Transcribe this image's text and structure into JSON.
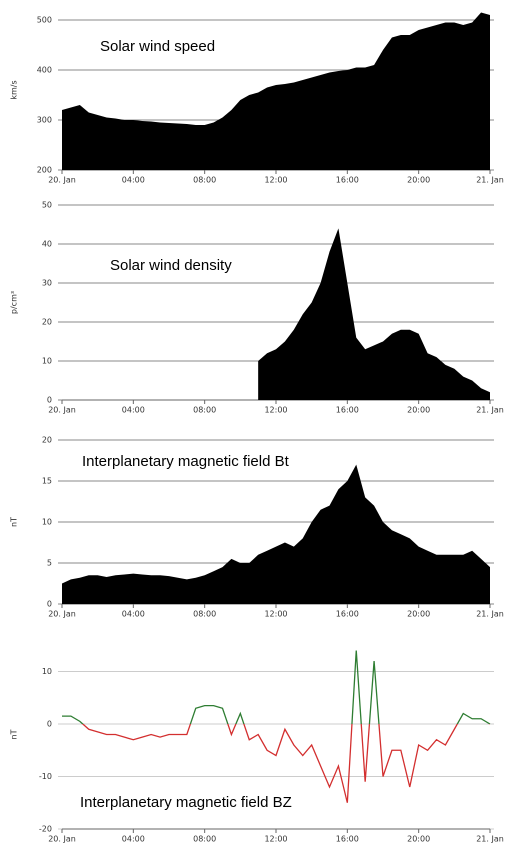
{
  "chart_data": [
    {
      "type": "area",
      "title": "Solar wind speed",
      "y_label": "km/s",
      "color": "#000000",
      "grid_color": "#888888",
      "x": [
        0,
        0.5,
        1,
        1.5,
        2,
        2.5,
        3,
        3.5,
        4,
        4.5,
        5,
        5.5,
        6,
        6.5,
        7,
        7.5,
        8,
        8.5,
        9,
        9.5,
        10,
        10.5,
        11,
        11.5,
        12,
        12.5,
        13,
        13.5,
        14,
        14.5,
        15,
        15.5,
        16,
        16.5,
        17,
        17.5,
        18,
        18.5,
        19,
        19.5,
        20,
        20.5,
        21,
        21.5,
        22,
        22.5,
        23,
        23.5,
        24
      ],
      "values": [
        320,
        325,
        330,
        315,
        310,
        305,
        303,
        300,
        300,
        298,
        297,
        295,
        294,
        293,
        292,
        290,
        290,
        295,
        305,
        320,
        340,
        350,
        355,
        365,
        370,
        372,
        375,
        380,
        385,
        390,
        395,
        398,
        400,
        405,
        405,
        410,
        440,
        465,
        470,
        470,
        480,
        485,
        490,
        495,
        495,
        490,
        495,
        515,
        510
      ],
      "xlim": [
        0,
        24
      ],
      "xticks": [
        {
          "value": 0,
          "label": "20. Jan"
        },
        {
          "value": 4,
          "label": "04:00"
        },
        {
          "value": 8,
          "label": "08:00"
        },
        {
          "value": 12,
          "label": "12:00"
        },
        {
          "value": 16,
          "label": "16:00"
        },
        {
          "value": 20,
          "label": "20:00"
        },
        {
          "value": 24,
          "label": "21. Jan"
        }
      ],
      "ylim": [
        200,
        520
      ],
      "yticks": [
        200,
        300,
        400,
        500
      ],
      "grid": true
    },
    {
      "type": "area",
      "title": "Solar wind density",
      "y_label": "p/cm³",
      "color": "#000000",
      "grid_color": "#888888",
      "x": [
        0,
        0.5,
        1,
        1.5,
        2,
        2.5,
        3,
        3.5,
        4,
        4.5,
        5,
        5.5,
        6,
        6.5,
        7,
        7.5,
        8,
        8.5,
        9,
        9.5,
        10,
        10.5,
        11,
        11.5,
        12,
        12.5,
        13,
        13.5,
        14,
        14.5,
        15,
        15.5,
        16,
        16.5,
        17,
        17.5,
        18,
        18.5,
        19,
        19.5,
        20,
        20.5,
        21,
        21.5,
        22,
        22.5,
        23,
        23.5,
        24
      ],
      "values": [
        null,
        null,
        null,
        null,
        null,
        null,
        null,
        null,
        null,
        null,
        null,
        null,
        null,
        null,
        null,
        null,
        null,
        null,
        null,
        null,
        null,
        null,
        10,
        12,
        13,
        15,
        18,
        22,
        25,
        30,
        38,
        44,
        30,
        16,
        13,
        14,
        15,
        17,
        18,
        18,
        17,
        12,
        11,
        9,
        8,
        6,
        5,
        3,
        2
      ],
      "xlim": [
        0,
        24
      ],
      "xticks": [
        {
          "value": 0,
          "label": "20. Jan"
        },
        {
          "value": 4,
          "label": "04:00"
        },
        {
          "value": 8,
          "label": "08:00"
        },
        {
          "value": 12,
          "label": "12:00"
        },
        {
          "value": 16,
          "label": "16:00"
        },
        {
          "value": 20,
          "label": "20:00"
        },
        {
          "value": 24,
          "label": "21. Jan"
        }
      ],
      "ylim": [
        0,
        50
      ],
      "yticks": [
        0,
        10,
        20,
        30,
        40,
        50
      ],
      "grid": true
    },
    {
      "type": "area",
      "title": "Interplanetary magnetic field Bt",
      "y_label": "nT",
      "color": "#000000",
      "grid_color": "#888888",
      "x": [
        0,
        0.5,
        1,
        1.5,
        2,
        2.5,
        3,
        3.5,
        4,
        4.5,
        5,
        5.5,
        6,
        6.5,
        7,
        7.5,
        8,
        8.5,
        9,
        9.5,
        10,
        10.5,
        11,
        11.5,
        12,
        12.5,
        13,
        13.5,
        14,
        14.5,
        15,
        15.5,
        16,
        16.5,
        17,
        17.5,
        18,
        18.5,
        19,
        19.5,
        20,
        20.5,
        21,
        21.5,
        22,
        22.5,
        23,
        23.5,
        24
      ],
      "values": [
        2.5,
        3,
        3.2,
        3.5,
        3.5,
        3.3,
        3.5,
        3.6,
        3.7,
        3.6,
        3.5,
        3.5,
        3.4,
        3.2,
        3,
        3.2,
        3.5,
        4,
        4.5,
        5.5,
        5,
        5,
        6,
        6.5,
        7,
        7.5,
        7,
        8,
        10,
        11.5,
        12,
        14,
        15,
        17,
        13,
        12,
        10,
        9,
        8.5,
        8,
        7,
        6.5,
        6,
        6,
        6,
        6,
        6.5,
        5.5,
        4.5
      ],
      "xlim": [
        0,
        24
      ],
      "xticks": [
        {
          "value": 0,
          "label": "20. Jan"
        },
        {
          "value": 4,
          "label": "04:00"
        },
        {
          "value": 8,
          "label": "08:00"
        },
        {
          "value": 12,
          "label": "12:00"
        },
        {
          "value": 16,
          "label": "16:00"
        },
        {
          "value": 20,
          "label": "20:00"
        },
        {
          "value": 24,
          "label": "21. Jan"
        }
      ],
      "ylim": [
        0,
        20
      ],
      "yticks": [
        0,
        5,
        10,
        15,
        20
      ],
      "grid": true
    },
    {
      "type": "line",
      "title": "Interplanetary magnetic field BZ",
      "y_label": "nT",
      "color": "#2e7d32",
      "negative_color": "#d32f2f",
      "grid_color": "#cccccc",
      "x": [
        0,
        0.5,
        1,
        1.5,
        2,
        2.5,
        3,
        3.5,
        4,
        4.5,
        5,
        5.5,
        6,
        6.5,
        7,
        7.5,
        8,
        8.5,
        9,
        9.5,
        10,
        10.5,
        11,
        11.5,
        12,
        12.5,
        13,
        13.5,
        14,
        14.5,
        15,
        15.5,
        16,
        16.5,
        17,
        17.5,
        18,
        18.5,
        19,
        19.5,
        20,
        20.5,
        21,
        21.5,
        22,
        22.5,
        23,
        23.5,
        24
      ],
      "values": [
        1.5,
        1.5,
        0.5,
        -1,
        -1.5,
        -2,
        -2,
        -2.5,
        -3,
        -2.5,
        -2,
        -2.5,
        -2,
        -2,
        -2,
        3,
        3.5,
        3.5,
        3,
        -2,
        2,
        -3,
        -2,
        -5,
        -6,
        -1,
        -4,
        -6,
        -4,
        -8,
        -12,
        -8,
        -15,
        14,
        -11,
        12,
        -10,
        -5,
        -5,
        -12,
        -4,
        -5,
        -3,
        -4,
        -1,
        2,
        1,
        1,
        0
      ],
      "xlim": [
        0,
        24
      ],
      "xticks": [
        {
          "value": 0,
          "label": "20. Jan"
        },
        {
          "value": 4,
          "label": "04:00"
        },
        {
          "value": 8,
          "label": "08:00"
        },
        {
          "value": 12,
          "label": "12:00"
        },
        {
          "value": 16,
          "label": "16:00"
        },
        {
          "value": 20,
          "label": "20:00"
        },
        {
          "value": 24,
          "label": "21. Jan"
        }
      ],
      "ylim": [
        -20,
        16
      ],
      "yticks": [
        -20,
        -10,
        0,
        10
      ],
      "grid": true
    }
  ]
}
